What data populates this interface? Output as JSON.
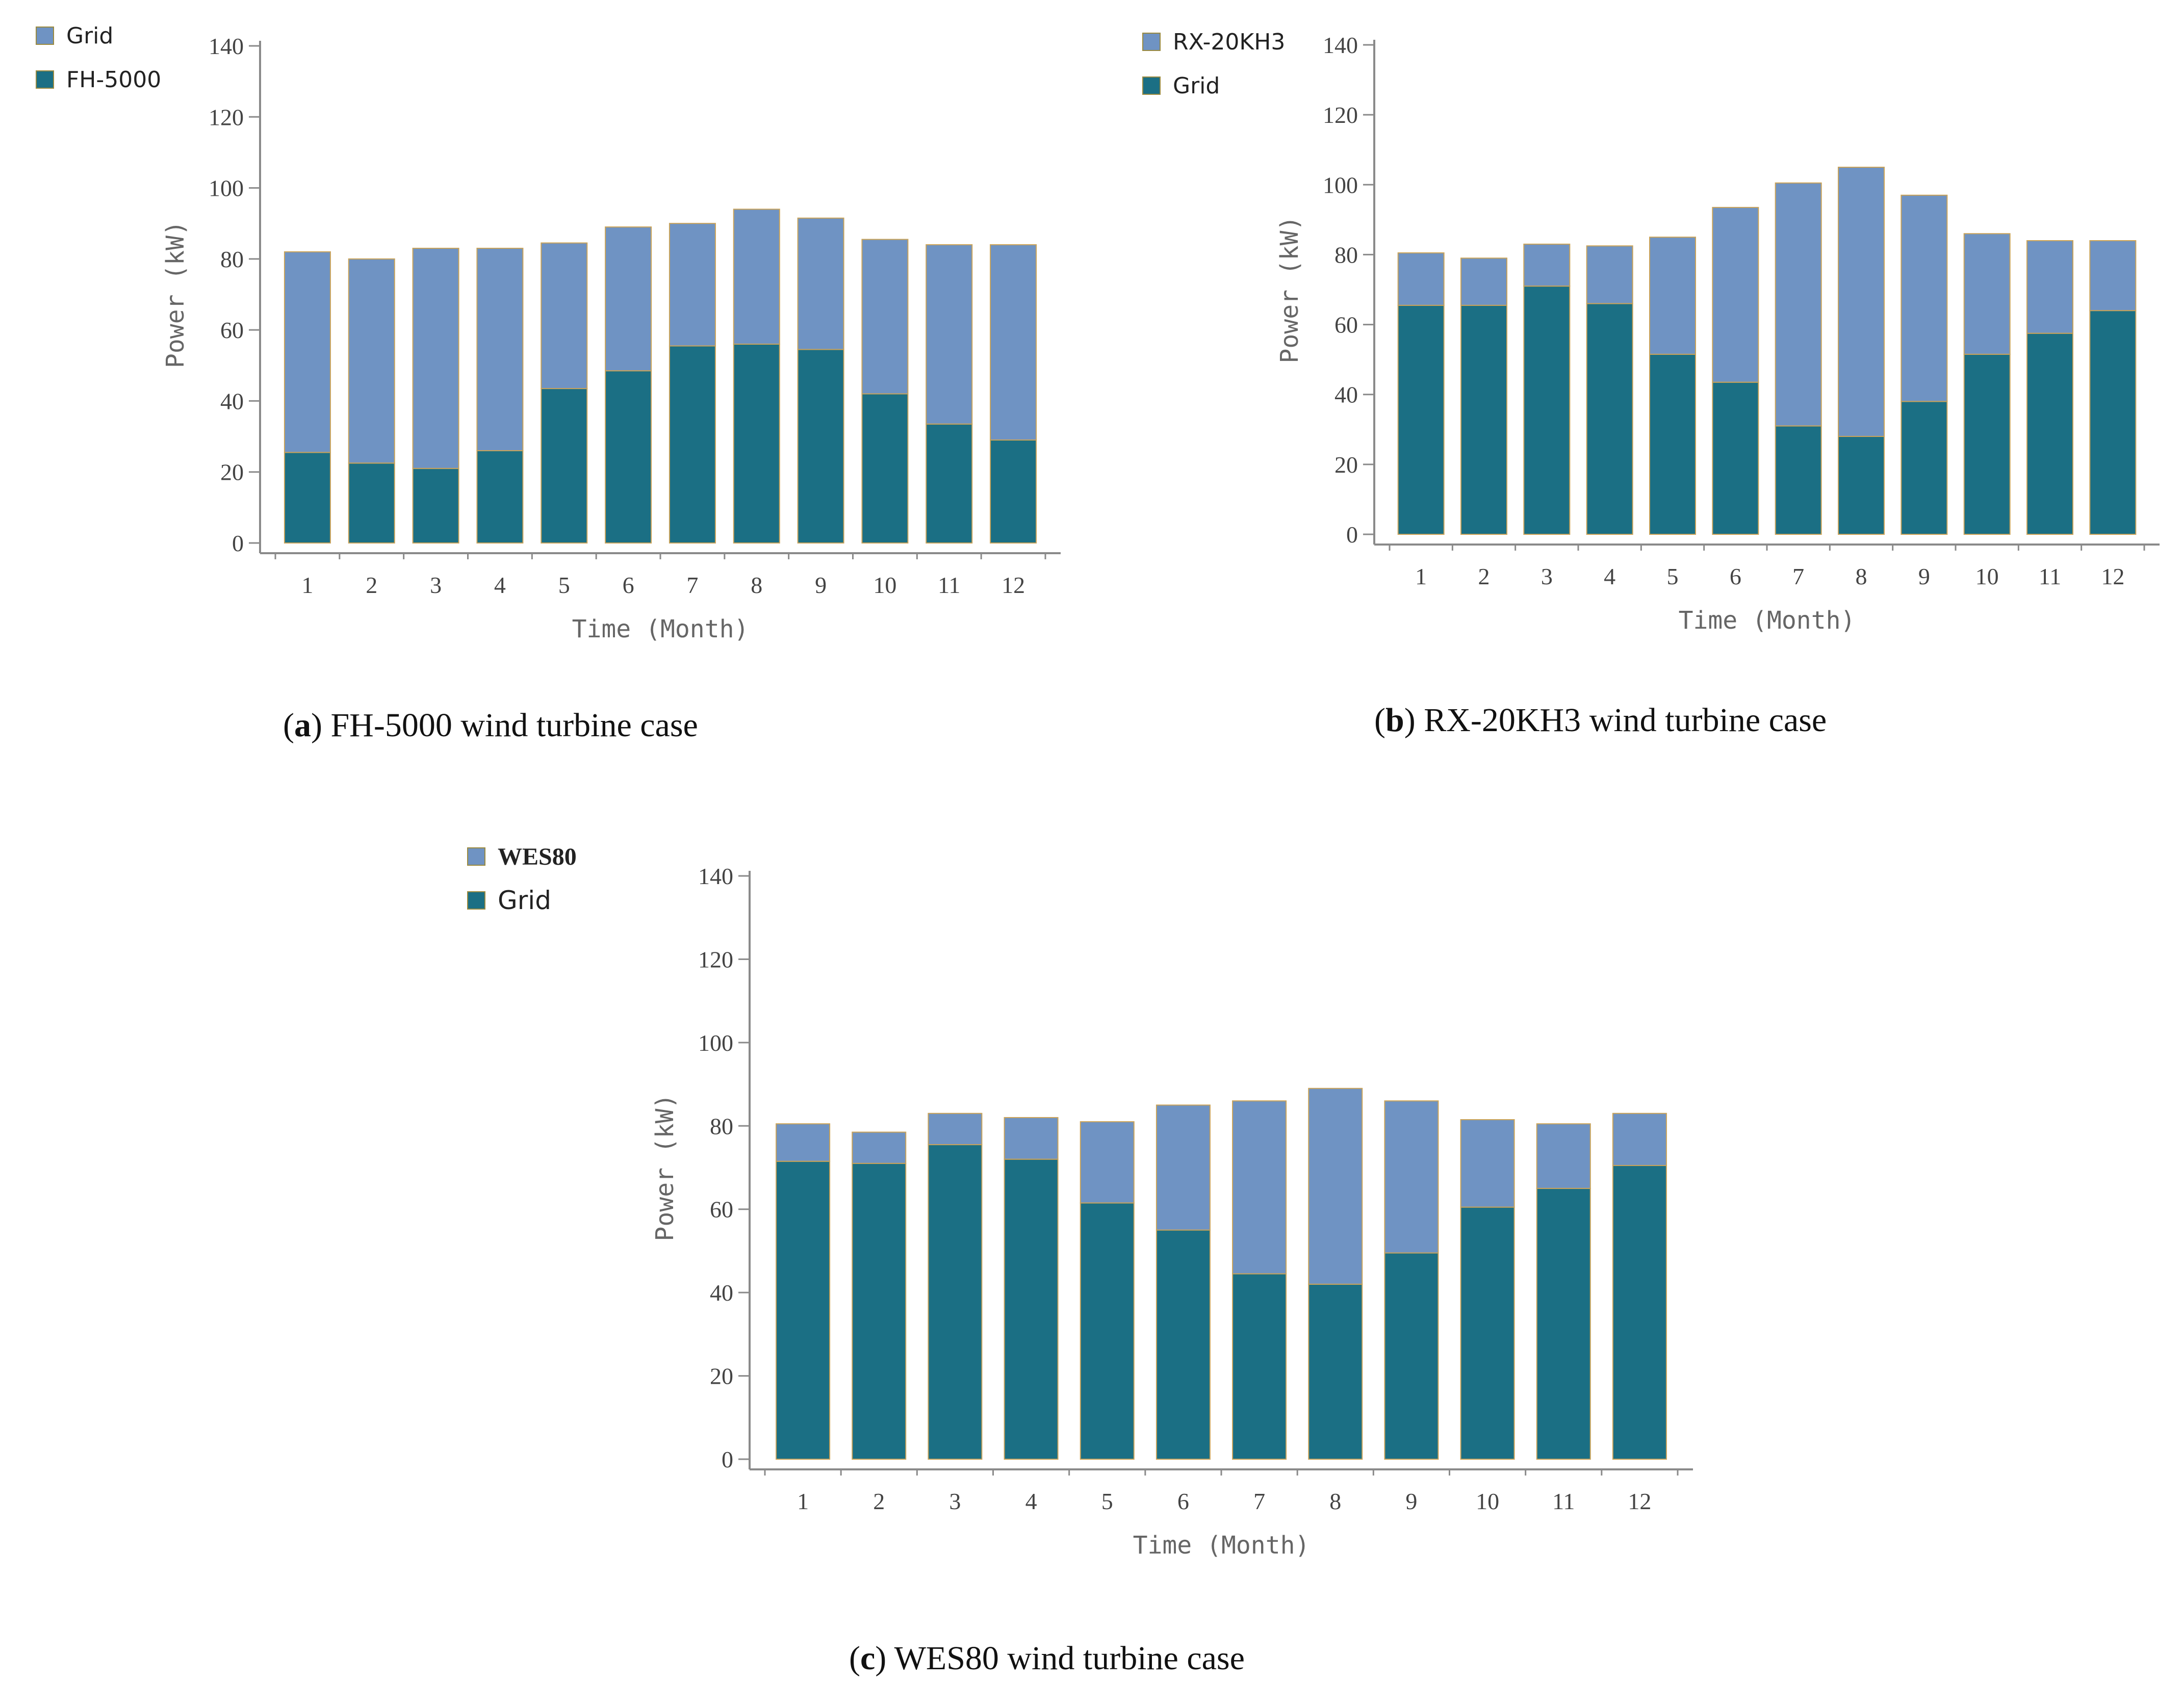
{
  "panels": [
    {
      "id": "a",
      "caption_letter": "a",
      "caption_text": "FH-5000 wind turbine case",
      "legend": [
        {
          "label": "Grid",
          "color": "#6f93c3"
        },
        {
          "label": "FH-5000",
          "color": "#1b6f84"
        }
      ]
    },
    {
      "id": "b",
      "caption_letter": "b",
      "caption_text": "RX-20KH3 wind turbine case",
      "legend": [
        {
          "label": "RX-20KH3",
          "color": "#6f93c3"
        },
        {
          "label": "Grid",
          "color": "#1b6f84"
        }
      ]
    },
    {
      "id": "c",
      "caption_letter": "c",
      "caption_text": "WES80 wind turbine case",
      "legend": [
        {
          "label": "WES80",
          "color": "#6f93c3"
        },
        {
          "label": "Grid",
          "color": "#1b6f84"
        }
      ]
    }
  ],
  "chart_data": [
    {
      "type": "bar",
      "stacked": true,
      "title": "",
      "xlabel": "Time (Month)",
      "ylabel": "Power (kW)",
      "ylim": [
        0,
        140
      ],
      "yticks": [
        0,
        20,
        40,
        60,
        80,
        100,
        120,
        140
      ],
      "categories": [
        "1",
        "2",
        "3",
        "4",
        "5",
        "6",
        "7",
        "8",
        "9",
        "10",
        "11",
        "12"
      ],
      "series": [
        {
          "name": "FH-5000",
          "color": "#1b6f84",
          "values": [
            25.5,
            22.5,
            21,
            26,
            43.5,
            48.5,
            55.5,
            56,
            54.5,
            42,
            33.5,
            29
          ]
        },
        {
          "name": "Grid",
          "color": "#6f93c3",
          "values": [
            56.5,
            57.5,
            62,
            57,
            41,
            40.5,
            34.5,
            38,
            37,
            43.5,
            50.5,
            55
          ]
        }
      ]
    },
    {
      "type": "bar",
      "stacked": true,
      "title": "",
      "xlabel": "Time (Month)",
      "ylabel": "Power (kW)",
      "ylim": [
        0,
        140
      ],
      "yticks": [
        0,
        20,
        40,
        60,
        80,
        100,
        120,
        140
      ],
      "categories": [
        "1",
        "2",
        "3",
        "4",
        "5",
        "6",
        "7",
        "8",
        "9",
        "10",
        "11",
        "12"
      ],
      "series": [
        {
          "name": "Grid",
          "color": "#1b6f84",
          "values": [
            65.5,
            65.5,
            71,
            66,
            51.5,
            43.5,
            31,
            28,
            38,
            51.5,
            57.5,
            64
          ]
        },
        {
          "name": "RX-20KH3",
          "color": "#6f93c3",
          "values": [
            15,
            13.5,
            12,
            16.5,
            33.5,
            50,
            69.5,
            77,
            59,
            34.5,
            26.5,
            20
          ]
        }
      ]
    },
    {
      "type": "bar",
      "stacked": true,
      "title": "",
      "xlabel": "Time (Month)",
      "ylabel": "Power (kW)",
      "ylim": [
        0,
        140
      ],
      "yticks": [
        0,
        20,
        40,
        60,
        80,
        100,
        120,
        140
      ],
      "categories": [
        "1",
        "2",
        "3",
        "4",
        "5",
        "6",
        "7",
        "8",
        "9",
        "10",
        "11",
        "12"
      ],
      "series": [
        {
          "name": "Grid",
          "color": "#1b6f84",
          "values": [
            71.5,
            71,
            75.5,
            72,
            61.5,
            55,
            44.5,
            42,
            49.5,
            60.5,
            65,
            70.5
          ]
        },
        {
          "name": "WES80",
          "color": "#6f93c3",
          "values": [
            9,
            7.5,
            7.5,
            10,
            19.5,
            30,
            41.5,
            47,
            36.5,
            21,
            15.5,
            12.5
          ]
        }
      ]
    }
  ]
}
